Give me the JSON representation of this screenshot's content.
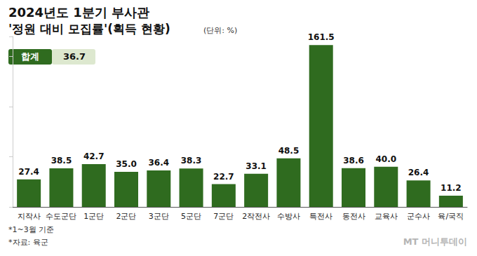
{
  "chart_data": {
    "type": "bar",
    "title": "2024년도 1분기 부사관",
    "subtitle": "'정원 대비 모집률'(획득 현황)",
    "unit": "(단위: %)",
    "total_label": "합계",
    "total_value": 36.7,
    "categories": [
      "지작사",
      "수도군단",
      "1군단",
      "2군단",
      "3군단",
      "5군단",
      "7군단",
      "2작전사",
      "수방사",
      "특전사",
      "동전사",
      "교육사",
      "군수사",
      "육/국직"
    ],
    "values": [
      27.4,
      38.5,
      42.7,
      35.0,
      36.4,
      38.3,
      22.7,
      33.1,
      48.5,
      161.5,
      38.6,
      40.0,
      26.4,
      11.2
    ],
    "value_labels": [
      "27.4",
      "38.5",
      "42.7",
      "35.0",
      "36.4",
      "38.3",
      "22.7",
      "33.1",
      "48.5",
      "161.5",
      "38.6",
      "40.0",
      "26.4",
      "11.2"
    ],
    "color": "#2f6b1f",
    "ylim": [
      0,
      170
    ],
    "yticks": [
      0,
      50,
      100,
      150
    ],
    "grid": false,
    "data_labels": true,
    "tick_labels": "x",
    "notes": [
      "*1~3월 기준",
      "*자료: 육군"
    ],
    "watermark": "MT 머니투데이"
  }
}
